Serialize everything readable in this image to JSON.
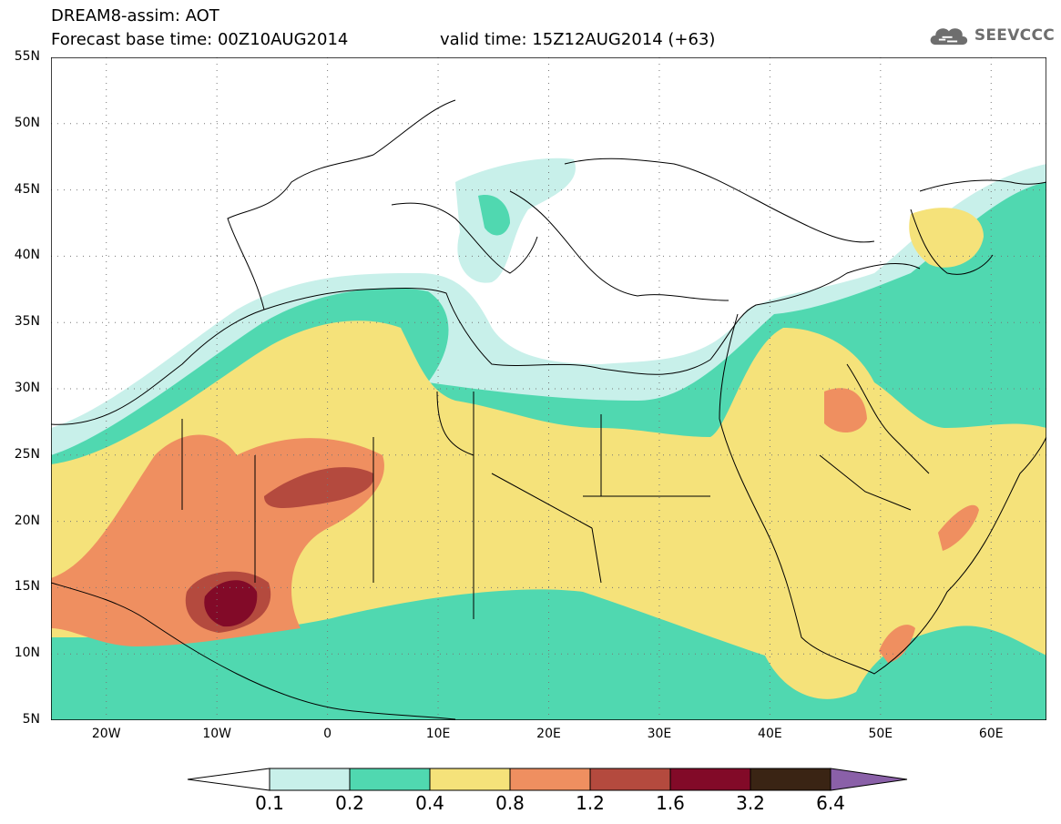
{
  "title_line1": "DREAM8-assim: AOT",
  "title_line2": "Forecast base time: 00Z10AUG2014",
  "valid_time": "valid time: 15Z12AUG2014 (+63)",
  "logo_text": "SEEVCCC",
  "lat_labels": [
    "55N",
    "50N",
    "45N",
    "40N",
    "35N",
    "30N",
    "25N",
    "20N",
    "15N",
    "10N",
    "5N"
  ],
  "lon_labels": [
    "20W",
    "10W",
    "0",
    "10E",
    "20E",
    "30E",
    "40E",
    "50E",
    "60E"
  ],
  "colorbar": {
    "labels": [
      "0.1",
      "0.2",
      "0.4",
      "0.8",
      "1.2",
      "1.6",
      "3.2",
      "6.4"
    ],
    "colors": [
      "#ffffff",
      "#c8f0ea",
      "#50d8b0",
      "#f5e27a",
      "#ef8f60",
      "#b44a3e",
      "#820a28",
      "#3a2414",
      "#8a60a8"
    ]
  },
  "chart_data": {
    "type": "heatmap",
    "variable": "AOT",
    "extent": {
      "lon_min": -25,
      "lon_max": 65,
      "lat_min": 5,
      "lat_max": 55
    },
    "lat_ticks": [
      55,
      50,
      45,
      40,
      35,
      30,
      25,
      20,
      15,
      10,
      5
    ],
    "lon_ticks": [
      -20,
      -10,
      0,
      10,
      20,
      30,
      40,
      50,
      60
    ],
    "levels": [
      0.1,
      0.2,
      0.4,
      0.8,
      1.2,
      1.6,
      3.2,
      6.4
    ],
    "grid": true
  }
}
